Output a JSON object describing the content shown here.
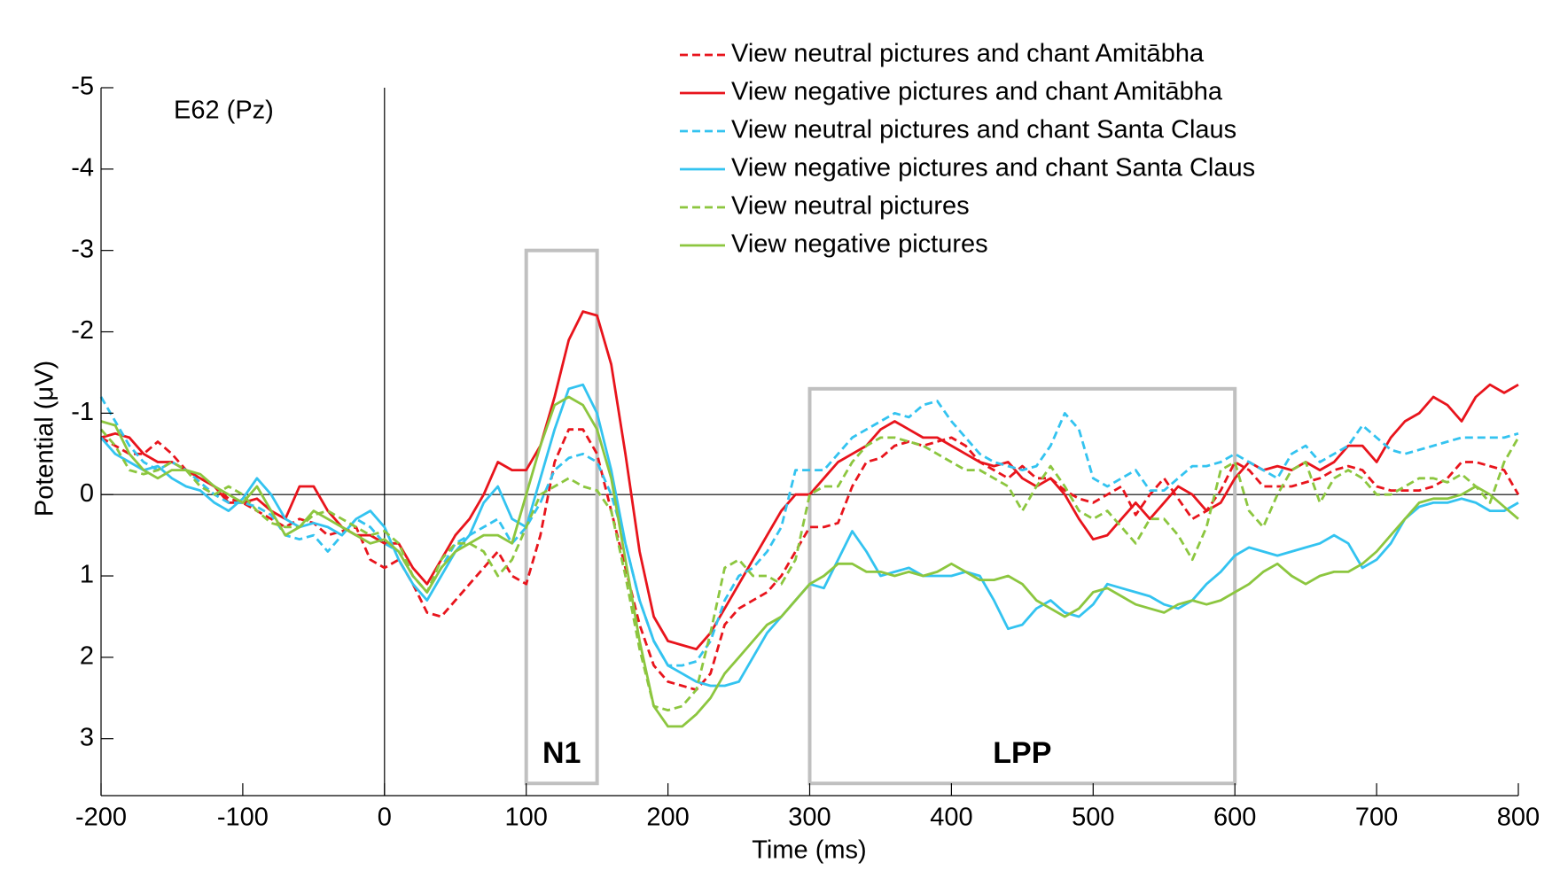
{
  "chart_data": {
    "type": "line",
    "annotation": "E62 (Pz)",
    "xlabel": "Time (ms)",
    "ylabel": "Potential (μV)",
    "xlim": [
      -200,
      800
    ],
    "ylim": [
      -5,
      3.7
    ],
    "y_reversed": true,
    "xticks": [
      -200,
      -100,
      0,
      100,
      200,
      300,
      400,
      500,
      600,
      700,
      800
    ],
    "yticks": [
      -5,
      -4,
      -3,
      -2,
      -1,
      0,
      1,
      2,
      3
    ],
    "reference_lines": {
      "x": 0,
      "y": 0
    },
    "regions": [
      {
        "label": "N1",
        "x": [
          100,
          150
        ],
        "y": [
          -3,
          3.55
        ],
        "color": "#c0c0c0"
      },
      {
        "label": "LPP",
        "x": [
          300,
          600
        ],
        "y": [
          -1.3,
          3.55
        ],
        "color": "#c0c0c0"
      }
    ],
    "x": [
      -200,
      -190,
      -180,
      -170,
      -160,
      -150,
      -140,
      -130,
      -120,
      -110,
      -100,
      -90,
      -80,
      -70,
      -60,
      -50,
      -40,
      -30,
      -20,
      -10,
      0,
      10,
      20,
      30,
      40,
      50,
      60,
      70,
      80,
      90,
      100,
      110,
      120,
      130,
      140,
      150,
      160,
      170,
      180,
      190,
      200,
      210,
      220,
      230,
      240,
      250,
      260,
      270,
      280,
      290,
      300,
      310,
      320,
      330,
      340,
      350,
      360,
      370,
      380,
      390,
      400,
      410,
      420,
      430,
      440,
      450,
      460,
      470,
      480,
      490,
      500,
      510,
      520,
      530,
      540,
      550,
      560,
      570,
      580,
      590,
      600,
      610,
      620,
      630,
      640,
      650,
      660,
      670,
      680,
      690,
      700,
      710,
      720,
      730,
      740,
      750,
      760,
      770,
      780,
      790,
      800
    ],
    "series": [
      {
        "name": "View neutral pictures and chant Amitābha",
        "color": "#e8141c",
        "style": "dashed",
        "values": [
          -0.7,
          -0.6,
          -0.5,
          -0.5,
          -0.65,
          -0.5,
          -0.3,
          -0.2,
          -0.1,
          0.05,
          0.1,
          0.2,
          0.3,
          0.4,
          0.3,
          0.35,
          0.5,
          0.45,
          0.4,
          0.8,
          0.9,
          0.8,
          1.1,
          1.45,
          1.5,
          1.3,
          1.1,
          0.9,
          0.7,
          1.0,
          1.1,
          0.5,
          -0.4,
          -0.8,
          -0.8,
          -0.5,
          0.2,
          0.9,
          1.6,
          2.1,
          2.3,
          2.35,
          2.4,
          2.2,
          1.6,
          1.4,
          1.3,
          1.2,
          1.0,
          0.7,
          0.4,
          0.4,
          0.35,
          -0.1,
          -0.4,
          -0.45,
          -0.6,
          -0.65,
          -0.6,
          -0.65,
          -0.7,
          -0.6,
          -0.4,
          -0.3,
          -0.2,
          -0.35,
          -0.2,
          -0.2,
          -0.05,
          0.05,
          0.1,
          0.0,
          -0.1,
          0.25,
          0.0,
          -0.2,
          0.05,
          0.3,
          0.2,
          -0.05,
          -0.4,
          -0.3,
          -0.1,
          -0.1,
          -0.1,
          -0.15,
          -0.2,
          -0.3,
          -0.35,
          -0.3,
          -0.1,
          -0.05,
          -0.05,
          -0.05,
          -0.1,
          -0.2,
          -0.4,
          -0.4,
          -0.35,
          -0.3,
          0.0
        ]
      },
      {
        "name": "View negative pictures and chant Amitābha",
        "color": "#e8141c",
        "style": "solid",
        "values": [
          -0.7,
          -0.75,
          -0.7,
          -0.5,
          -0.4,
          -0.4,
          -0.3,
          -0.2,
          -0.1,
          0.1,
          0.1,
          0.05,
          0.2,
          0.3,
          -0.1,
          -0.1,
          0.2,
          0.4,
          0.5,
          0.5,
          0.6,
          0.6,
          0.9,
          1.1,
          0.8,
          0.5,
          0.3,
          0.0,
          -0.4,
          -0.3,
          -0.3,
          -0.6,
          -1.2,
          -1.9,
          -2.25,
          -2.2,
          -1.6,
          -0.5,
          0.7,
          1.5,
          1.8,
          1.85,
          1.9,
          1.7,
          1.4,
          1.1,
          0.8,
          0.5,
          0.2,
          0.0,
          0.0,
          -0.2,
          -0.4,
          -0.5,
          -0.6,
          -0.8,
          -0.9,
          -0.8,
          -0.7,
          -0.7,
          -0.6,
          -0.5,
          -0.4,
          -0.35,
          -0.4,
          -0.2,
          -0.1,
          -0.2,
          0.0,
          0.3,
          0.55,
          0.5,
          0.3,
          0.1,
          0.3,
          0.1,
          -0.1,
          0.0,
          0.2,
          0.1,
          -0.2,
          -0.4,
          -0.3,
          -0.35,
          -0.3,
          -0.4,
          -0.3,
          -0.4,
          -0.6,
          -0.6,
          -0.4,
          -0.7,
          -0.9,
          -1.0,
          -1.2,
          -1.1,
          -0.9,
          -1.2,
          -1.35,
          -1.25,
          -1.35
        ]
      },
      {
        "name": "View neutral pictures and chant Santa Claus",
        "color": "#33c3f0",
        "style": "dashed",
        "values": [
          -1.2,
          -0.9,
          -0.6,
          -0.4,
          -0.3,
          -0.4,
          -0.3,
          -0.15,
          0.0,
          0.1,
          0.1,
          0.15,
          0.25,
          0.5,
          0.55,
          0.5,
          0.7,
          0.5,
          0.3,
          0.4,
          0.6,
          0.7,
          1.0,
          1.2,
          0.9,
          0.6,
          0.5,
          0.4,
          0.3,
          0.6,
          0.4,
          0.1,
          -0.3,
          -0.45,
          -0.5,
          -0.4,
          0.0,
          0.6,
          1.3,
          1.8,
          2.1,
          2.1,
          2.05,
          1.8,
          1.3,
          1.0,
          0.9,
          0.7,
          0.4,
          -0.3,
          -0.3,
          -0.3,
          -0.5,
          -0.7,
          -0.8,
          -0.9,
          -1.0,
          -0.95,
          -1.1,
          -1.15,
          -0.9,
          -0.7,
          -0.5,
          -0.4,
          -0.35,
          -0.3,
          -0.35,
          -0.6,
          -1.0,
          -0.8,
          -0.2,
          -0.1,
          -0.2,
          -0.3,
          -0.05,
          -0.05,
          -0.2,
          -0.35,
          -0.35,
          -0.4,
          -0.5,
          -0.4,
          -0.3,
          -0.2,
          -0.5,
          -0.6,
          -0.4,
          -0.5,
          -0.6,
          -0.85,
          -0.7,
          -0.55,
          -0.5,
          -0.55,
          -0.6,
          -0.65,
          -0.7,
          -0.7,
          -0.7,
          -0.7,
          -0.75
        ]
      },
      {
        "name": "View negative pictures and chant Santa Claus",
        "color": "#33c3f0",
        "style": "solid",
        "values": [
          -0.7,
          -0.5,
          -0.4,
          -0.3,
          -0.35,
          -0.2,
          -0.1,
          -0.05,
          0.1,
          0.2,
          0.05,
          -0.2,
          0.0,
          0.3,
          0.4,
          0.35,
          0.4,
          0.5,
          0.3,
          0.2,
          0.4,
          0.8,
          1.1,
          1.3,
          1.0,
          0.7,
          0.5,
          0.1,
          -0.1,
          0.3,
          0.4,
          -0.2,
          -0.8,
          -1.3,
          -1.35,
          -1.0,
          -0.3,
          0.6,
          1.3,
          1.8,
          2.1,
          2.2,
          2.3,
          2.35,
          2.35,
          2.3,
          2.0,
          1.7,
          1.5,
          1.3,
          1.1,
          1.15,
          0.8,
          0.45,
          0.7,
          1.0,
          0.95,
          0.9,
          1.0,
          1.0,
          1.0,
          0.95,
          1.0,
          1.3,
          1.65,
          1.6,
          1.4,
          1.3,
          1.45,
          1.5,
          1.35,
          1.1,
          1.15,
          1.2,
          1.25,
          1.35,
          1.4,
          1.3,
          1.1,
          0.95,
          0.75,
          0.65,
          0.7,
          0.75,
          0.7,
          0.65,
          0.6,
          0.5,
          0.6,
          0.9,
          0.8,
          0.6,
          0.3,
          0.15,
          0.1,
          0.1,
          0.05,
          0.1,
          0.2,
          0.2,
          0.1
        ]
      },
      {
        "name": "View neutral pictures",
        "color": "#8cc63f",
        "style": "dashed",
        "values": [
          -0.8,
          -0.6,
          -0.3,
          -0.25,
          -0.3,
          -0.4,
          -0.3,
          -0.1,
          0.0,
          -0.1,
          0.0,
          0.2,
          0.35,
          0.4,
          0.4,
          0.25,
          0.2,
          0.3,
          0.4,
          0.5,
          0.45,
          0.6,
          1.0,
          1.2,
          0.8,
          0.6,
          0.6,
          0.7,
          1.0,
          0.8,
          0.4,
          0.0,
          -0.1,
          -0.2,
          -0.1,
          -0.05,
          0.2,
          1.0,
          1.9,
          2.6,
          2.65,
          2.6,
          2.4,
          1.7,
          0.9,
          0.8,
          1.0,
          1.0,
          1.1,
          0.8,
          0.0,
          -0.1,
          -0.1,
          -0.4,
          -0.6,
          -0.7,
          -0.7,
          -0.65,
          -0.6,
          -0.5,
          -0.4,
          -0.3,
          -0.3,
          -0.2,
          -0.1,
          0.2,
          -0.1,
          -0.35,
          -0.1,
          0.2,
          0.3,
          0.2,
          0.4,
          0.6,
          0.3,
          0.3,
          0.5,
          0.8,
          0.4,
          -0.3,
          -0.4,
          0.2,
          0.4,
          0.0,
          -0.3,
          -0.4,
          0.1,
          -0.2,
          -0.3,
          -0.2,
          0.0,
          0.0,
          -0.1,
          -0.2,
          -0.2,
          -0.15,
          -0.25,
          -0.1,
          0.1,
          -0.4,
          -0.7
        ]
      },
      {
        "name": "View negative pictures",
        "color": "#8cc63f",
        "style": "solid",
        "values": [
          -0.9,
          -0.85,
          -0.5,
          -0.3,
          -0.2,
          -0.3,
          -0.3,
          -0.25,
          -0.1,
          0.0,
          0.1,
          -0.1,
          0.2,
          0.5,
          0.4,
          0.2,
          0.3,
          0.4,
          0.5,
          0.6,
          0.55,
          0.7,
          1.0,
          1.2,
          0.9,
          0.7,
          0.6,
          0.5,
          0.5,
          0.6,
          0.0,
          -0.6,
          -1.1,
          -1.2,
          -1.1,
          -0.8,
          -0.2,
          0.8,
          1.8,
          2.6,
          2.85,
          2.85,
          2.7,
          2.5,
          2.2,
          2.0,
          1.8,
          1.6,
          1.5,
          1.3,
          1.1,
          1.0,
          0.85,
          0.85,
          0.95,
          0.95,
          1.0,
          0.95,
          1.0,
          0.95,
          0.85,
          0.95,
          1.05,
          1.05,
          1.0,
          1.1,
          1.3,
          1.4,
          1.5,
          1.4,
          1.2,
          1.15,
          1.25,
          1.35,
          1.4,
          1.45,
          1.35,
          1.3,
          1.35,
          1.3,
          1.2,
          1.1,
          0.95,
          0.85,
          1.0,
          1.1,
          1.0,
          0.95,
          0.95,
          0.85,
          0.7,
          0.5,
          0.3,
          0.1,
          0.05,
          0.05,
          0.0,
          -0.1,
          0.0,
          0.15,
          0.3
        ]
      }
    ]
  }
}
